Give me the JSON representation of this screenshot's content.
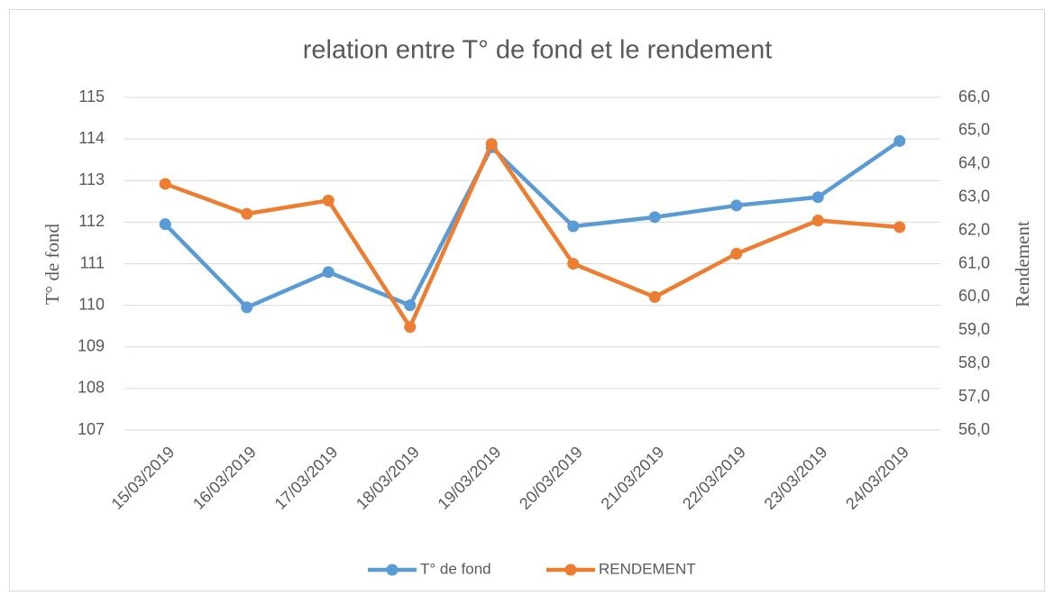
{
  "chart_data": {
    "type": "line",
    "title": "relation entre T° de fond et le rendement",
    "ylabel": "T° de fond",
    "y2label": "Rendement",
    "categories": [
      "15/03/2019",
      "16/03/2019",
      "17/03/2019",
      "18/03/2019",
      "19/03/2019",
      "20/03/2019",
      "21/03/2019",
      "22/03/2019",
      "23/03/2019",
      "24/03/2019"
    ],
    "series": [
      {
        "name": "T° de fond",
        "color": "#5b9bd5",
        "values": [
          111.95,
          109.95,
          110.8,
          110.0,
          113.8,
          111.9,
          112.12,
          112.4,
          112.6,
          113.95
        ]
      },
      {
        "name": "RENDEMENT",
        "color": "#ed7d31",
        "axis": "y2",
        "values": [
          63.4,
          62.5,
          62.9,
          59.1,
          64.6,
          61.0,
          60.0,
          61.3,
          62.3,
          62.1
        ]
      }
    ],
    "ylim": [
      107,
      115
    ],
    "yticks": [
      107,
      108,
      109,
      110,
      111,
      112,
      113,
      114,
      115
    ],
    "y2lim": [
      56,
      66
    ],
    "y2ticks": [
      {
        "value": 56,
        "label": "56,0"
      },
      {
        "value": 57,
        "label": "57,0"
      },
      {
        "value": 58,
        "label": "58,0"
      },
      {
        "value": 59,
        "label": "59,0"
      },
      {
        "value": 60,
        "label": "60,0"
      },
      {
        "value": 61,
        "label": "61,0"
      },
      {
        "value": 62,
        "label": "62,0"
      },
      {
        "value": 63,
        "label": "63,0"
      },
      {
        "value": 64,
        "label": "64,0"
      },
      {
        "value": 65,
        "label": "65,0"
      },
      {
        "value": 66,
        "label": "66,0"
      }
    ],
    "grid": true,
    "legend": "bottom"
  }
}
